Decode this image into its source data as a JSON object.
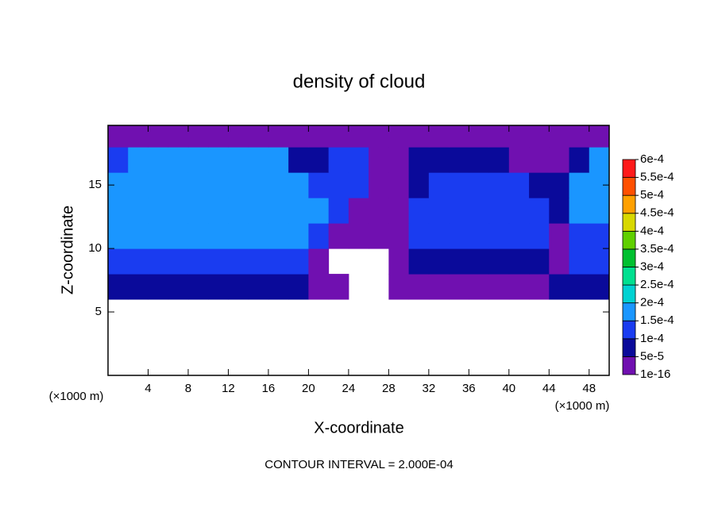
{
  "chart_data": {
    "type": "contour",
    "title": "density of cloud",
    "xlabel": "X-coordinate",
    "ylabel": "Z-coordinate",
    "x_unit": "(×1000 m)",
    "y_unit": "(×1000 m)",
    "footer": "CONTOUR INTERVAL = 2.000E-04",
    "xlim": [
      0,
      50
    ],
    "ylim": [
      0,
      19.7
    ],
    "xticks": [
      4,
      8,
      12,
      16,
      20,
      24,
      28,
      32,
      36,
      40,
      44,
      48
    ],
    "yticks": [
      5,
      10,
      15
    ],
    "x": [
      1,
      3,
      5,
      7,
      9,
      11,
      13,
      15,
      17,
      19,
      21,
      23,
      25,
      27,
      29,
      31,
      33,
      35,
      37,
      39,
      41,
      43,
      45,
      47,
      49
    ],
    "z": [
      7,
      9,
      11,
      13,
      15,
      17,
      19
    ],
    "values": [
      [
        6e-05,
        6e-05,
        6e-05,
        6e-05,
        6e-05,
        6e-05,
        6e-05,
        6e-05,
        6e-05,
        6e-05,
        2e-05,
        2e-05,
        null,
        null,
        2e-05,
        2e-05,
        2e-05,
        2e-05,
        2e-05,
        2e-05,
        2e-05,
        2e-05,
        6e-05,
        6e-05,
        6e-05
      ],
      [
        0.00012,
        0.00012,
        0.00012,
        0.00012,
        0.00012,
        0.00012,
        0.00012,
        0.00012,
        0.00012,
        0.00012,
        3e-05,
        null,
        null,
        null,
        3e-05,
        8e-05,
        8e-05,
        8e-05,
        8e-05,
        8e-05,
        8e-05,
        8e-05,
        3e-05,
        0.00011,
        0.00011
      ],
      [
        0.00016,
        0.00016,
        0.00016,
        0.00016,
        0.00016,
        0.00016,
        0.00016,
        0.00016,
        0.00016,
        0.00016,
        0.00012,
        3e-05,
        3e-05,
        3e-05,
        3e-05,
        0.00012,
        0.00012,
        0.00012,
        0.00012,
        0.00012,
        0.00012,
        0.00012,
        3e-05,
        0.00012,
        0.00012
      ],
      [
        0.00017,
        0.00017,
        0.00017,
        0.00017,
        0.00017,
        0.00017,
        0.00017,
        0.00017,
        0.00017,
        0.00016,
        0.00016,
        0.00012,
        3e-05,
        3e-05,
        3e-05,
        0.00012,
        0.00012,
        0.00011,
        0.00011,
        0.00011,
        0.00011,
        0.00011,
        6e-05,
        0.00016,
        0.00016
      ],
      [
        0.00017,
        0.00017,
        0.00017,
        0.00017,
        0.00017,
        0.00017,
        0.00017,
        0.00017,
        0.00017,
        0.00015,
        0.00012,
        0.00012,
        0.00013,
        4e-05,
        4e-05,
        6e-05,
        0.00011,
        0.00011,
        0.00011,
        0.00011,
        0.00011,
        7e-05,
        7e-05,
        0.00016,
        0.00016
      ],
      [
        0.00011,
        0.00015,
        0.00015,
        0.00015,
        0.00015,
        0.00015,
        0.00015,
        0.00015,
        0.00015,
        8e-05,
        6e-05,
        0.00011,
        0.00011,
        3e-05,
        3e-05,
        6e-05,
        6e-05,
        6e-05,
        6e-05,
        6e-05,
        3e-05,
        3e-05,
        3e-05,
        6e-05,
        0.00015
      ],
      [
        2e-05,
        2e-05,
        2e-05,
        2e-05,
        2e-05,
        2e-05,
        2e-05,
        2e-05,
        2e-05,
        2e-05,
        2e-05,
        2e-05,
        2e-05,
        2e-05,
        2e-05,
        2e-05,
        2e-05,
        2e-05,
        2e-05,
        2e-05,
        2e-05,
        2e-05,
        2e-05,
        2e-05,
        2e-05
      ]
    ],
    "levels": [
      {
        "value": 1e-16,
        "label": "1e-16"
      },
      {
        "value": 5e-05,
        "label": "5e-5"
      },
      {
        "value": 0.0001,
        "label": "1e-4"
      },
      {
        "value": 0.00015,
        "label": "1.5e-4"
      },
      {
        "value": 0.0002,
        "label": "2e-4"
      },
      {
        "value": 0.00025,
        "label": "2.5e-4"
      },
      {
        "value": 0.0003,
        "label": "3e-4"
      },
      {
        "value": 0.00035,
        "label": "3.5e-4"
      },
      {
        "value": 0.0004,
        "label": "4e-4"
      },
      {
        "value": 0.00045,
        "label": "4.5e-4"
      },
      {
        "value": 0.0005,
        "label": "5e-4"
      },
      {
        "value": 0.00055,
        "label": "5.5e-4"
      },
      {
        "value": 0.0006,
        "label": "6e-4"
      }
    ],
    "colors": [
      "#7010b0",
      "#0a0a9a",
      "#1a3cf0",
      "#1a96ff",
      "#00d2d2",
      "#00e090",
      "#00c030",
      "#60d000",
      "#d8d800",
      "#ffa000",
      "#ff5000",
      "#ff1a1a",
      "#ff9090"
    ]
  }
}
